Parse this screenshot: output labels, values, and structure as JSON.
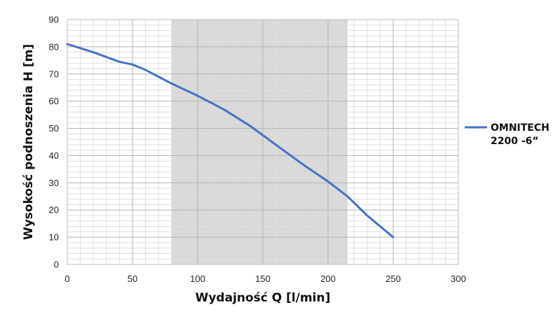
{
  "chart_data": {
    "type": "line",
    "xlabel": "Wydajność Q [l/min]",
    "ylabel": "Wysokość podnoszenia H [m]",
    "xlim": [
      0,
      300
    ],
    "ylim": [
      0,
      90
    ],
    "x_ticks": [
      "0",
      "50",
      "100",
      "150",
      "200",
      "250",
      "300"
    ],
    "y_ticks": [
      "0",
      "10",
      "20",
      "30",
      "40",
      "50",
      "60",
      "70",
      "80",
      "90"
    ],
    "grid": true,
    "legend": "right",
    "highlight_band": {
      "x_from": 80,
      "x_to": 215,
      "color": "#d9d9d9"
    },
    "series": [
      {
        "name_lines": [
          "OMNITECH",
          "2200 -6”"
        ],
        "color": "#4472c4",
        "x": [
          0,
          20,
          40,
          50,
          60,
          80,
          100,
          120,
          140,
          160,
          180,
          200,
          215,
          230,
          250
        ],
        "y": [
          81,
          78,
          74.5,
          73.5,
          71.5,
          66.5,
          62,
          57,
          51,
          44,
          37,
          30.5,
          25,
          18,
          10
        ]
      }
    ]
  }
}
